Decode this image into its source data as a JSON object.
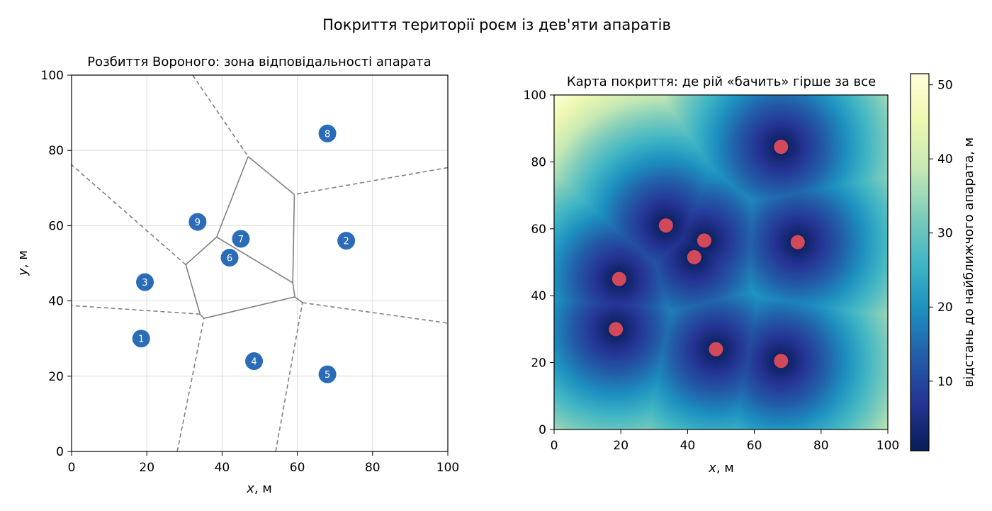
{
  "suptitle": "Покриття території роєм із дев'яти апаратів",
  "chart_data": [
    {
      "type": "scatter",
      "title": "Розбиття Вороного: зона відповідальності апарата",
      "xlabel": "x, м",
      "ylabel": "y, м",
      "xlim": [
        0,
        100
      ],
      "ylim": [
        0,
        100
      ],
      "xticks": [
        "0",
        "20",
        "40",
        "60",
        "80",
        "100"
      ],
      "yticks": [
        "0",
        "20",
        "40",
        "60",
        "80",
        "100"
      ],
      "grid": true,
      "marker_color": "#2b6cb8",
      "edge_color": "#808080",
      "points": [
        {
          "label": "1",
          "x": 18.5,
          "y": 30.0
        },
        {
          "label": "2",
          "x": 73.0,
          "y": 56.0
        },
        {
          "label": "3",
          "x": 19.5,
          "y": 45.0
        },
        {
          "label": "4",
          "x": 48.5,
          "y": 24.0
        },
        {
          "label": "5",
          "x": 68.0,
          "y": 20.5
        },
        {
          "label": "6",
          "x": 42.0,
          "y": 51.5
        },
        {
          "label": "7",
          "x": 45.0,
          "y": 56.5
        },
        {
          "label": "8",
          "x": 68.0,
          "y": 84.5
        },
        {
          "label": "9",
          "x": 33.5,
          "y": 61.0
        }
      ]
    },
    {
      "type": "heatmap",
      "title": "Карта покриття: де рій «бачить» гірше за все",
      "xlabel": "x, м",
      "xlim": [
        0,
        100
      ],
      "ylim": [
        0,
        100
      ],
      "xticks": [
        "0",
        "20",
        "40",
        "60",
        "80",
        "100"
      ],
      "yticks": [
        "0",
        "20",
        "40",
        "60",
        "80",
        "100"
      ],
      "colormap": "YlGnBu_r",
      "colorbar_label": "відстань до найближчого апарата, м",
      "colorbar_ticks": [
        "10",
        "20",
        "30",
        "40",
        "50"
      ],
      "colorbar_range": [
        0.6,
        51.5
      ],
      "marker_color": "#d24a5a",
      "points": [
        {
          "x": 18.5,
          "y": 30.0
        },
        {
          "x": 73.0,
          "y": 56.0
        },
        {
          "x": 19.5,
          "y": 45.0
        },
        {
          "x": 48.5,
          "y": 24.0
        },
        {
          "x": 68.0,
          "y": 20.5
        },
        {
          "x": 42.0,
          "y": 51.5
        },
        {
          "x": 45.0,
          "y": 56.5
        },
        {
          "x": 68.0,
          "y": 84.5
        },
        {
          "x": 33.5,
          "y": 61.0
        }
      ]
    }
  ]
}
